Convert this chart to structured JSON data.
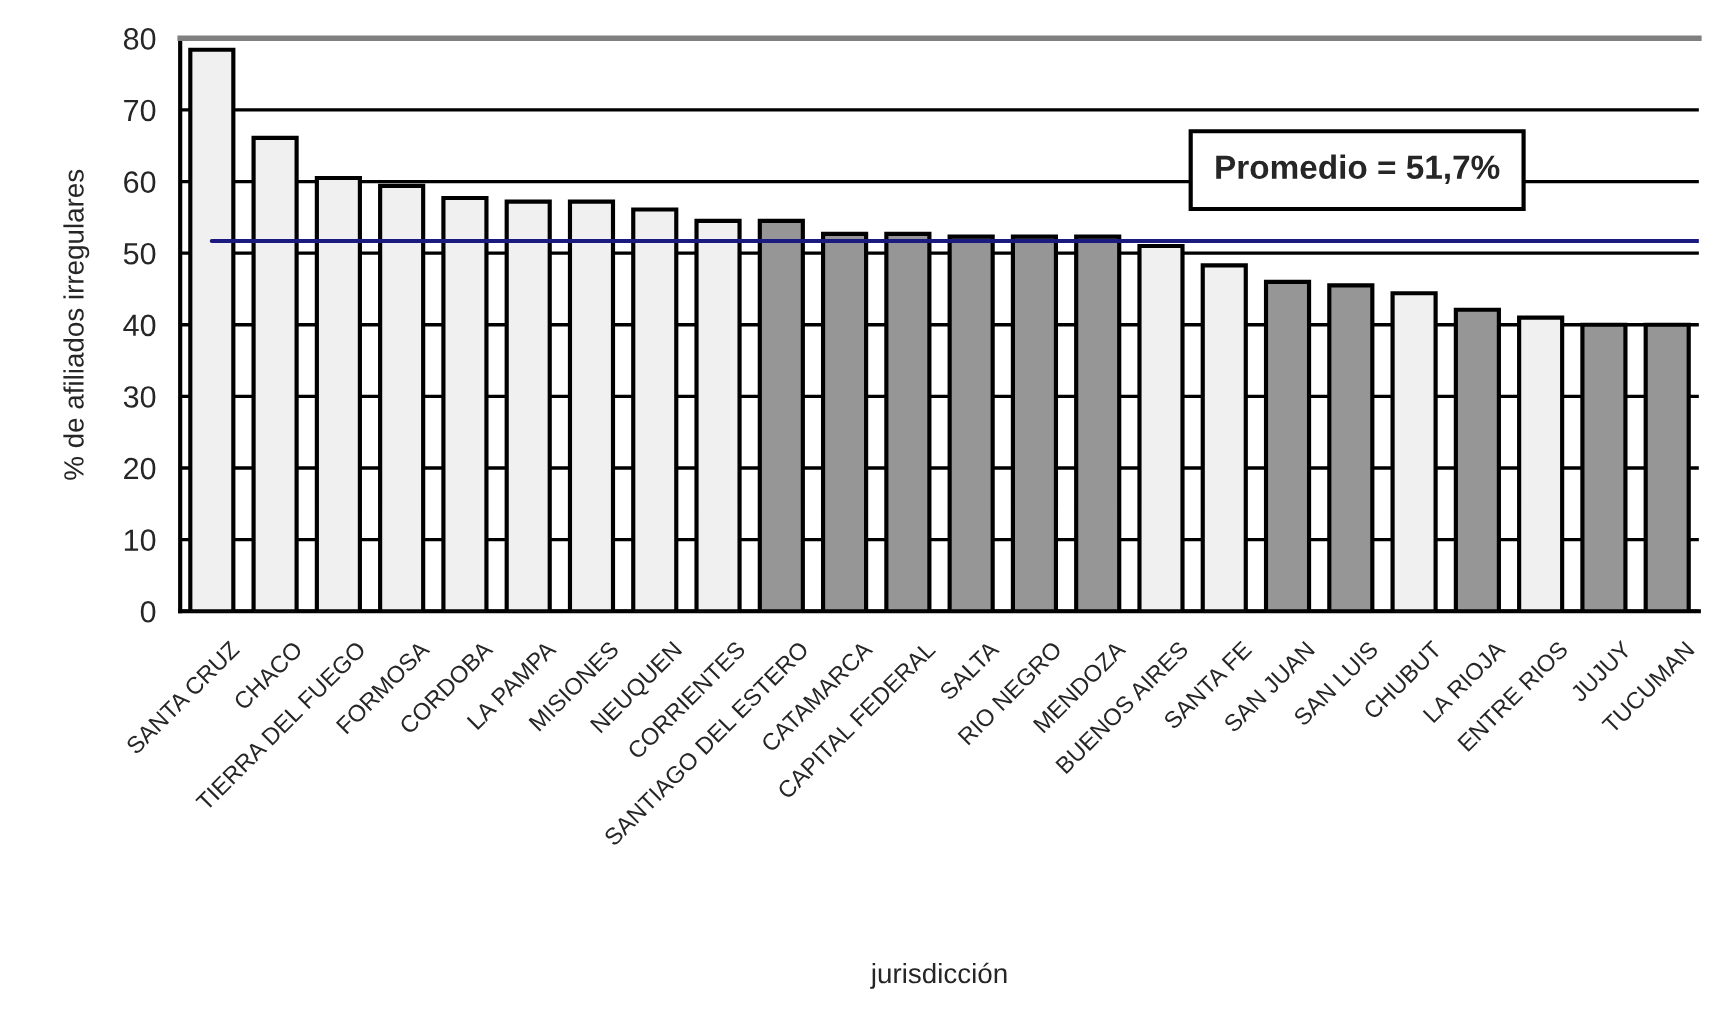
{
  "chart_data": {
    "type": "bar",
    "categories": [
      "SANTA CRUZ",
      "CHACO",
      "TIERRA DEL FUEGO",
      "FORMOSA",
      "CORDOBA",
      "LA PAMPA",
      "MISIONES",
      "NEUQUEN",
      "CORRIENTES",
      "SANTIAGO DEL ESTERO",
      "CATAMARCA",
      "CAPITAL FEDERAL",
      "SALTA",
      "RIO NEGRO",
      "MENDOZA",
      "BUENOS AIRES",
      "SANTA FE",
      "SAN JUAN",
      "SAN LUIS",
      "CHUBUT",
      "LA RIOJA",
      "ENTRE RIOS",
      "JUJUY",
      "TUCUMAN"
    ],
    "values": [
      78.4,
      66.1,
      60.5,
      59.4,
      57.7,
      57.2,
      57.2,
      56.1,
      54.5,
      54.5,
      52.7,
      52.7,
      52.3,
      52.3,
      52.3,
      51.0,
      48.3,
      46.0,
      45.5,
      44.4,
      42.1,
      41.0,
      40,
      40
    ],
    "colors": [
      "#f0f0f0",
      "#f0f0f0",
      "#f0f0f0",
      "#f0f0f0",
      "#f0f0f0",
      "#f0f0f0",
      "#f0f0f0",
      "#f0f0f0",
      "#f0f0f0",
      "#969696",
      "#969696",
      "#969696",
      "#969696",
      "#969696",
      "#969696",
      "#f0f0f0",
      "#f0f0f0",
      "#969696",
      "#969696",
      "#f0f0f0",
      "#969696",
      "#f0f0f0",
      "#969696",
      "#969696"
    ],
    "xlabel": "jurisdicción",
    "ylabel": "% de afiliados irregulares",
    "ylim": [
      0,
      80
    ],
    "yticks": [
      0,
      10,
      20,
      30,
      40,
      50,
      60,
      70,
      80
    ],
    "grid": "y",
    "ref_lines": [
      {
        "axis": "y",
        "value": 51.7,
        "label": "Promedio = 51,7%",
        "color": "#1a1a80"
      }
    ]
  }
}
